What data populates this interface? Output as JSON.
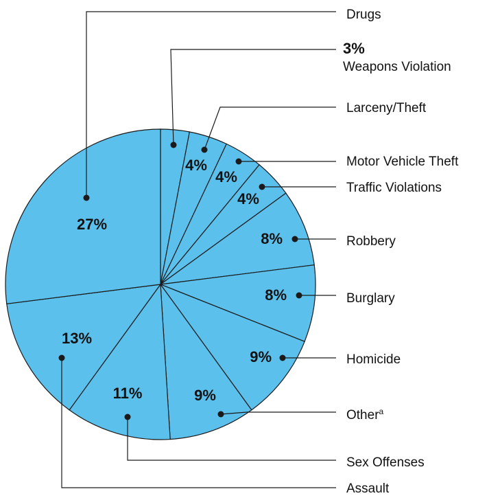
{
  "chart_data": {
    "type": "pie",
    "slices": [
      {
        "label": "Weapons Violation",
        "value": 3,
        "pct_text": "3%"
      },
      {
        "label": "Larceny/Theft",
        "value": 4,
        "pct_text": "4%"
      },
      {
        "label": "Motor Vehicle Theft",
        "value": 4,
        "pct_text": "4%"
      },
      {
        "label": "Traffic Violations",
        "value": 4,
        "pct_text": "4%"
      },
      {
        "label": "Robbery",
        "value": 8,
        "pct_text": "8%"
      },
      {
        "label": "Burglary",
        "value": 8,
        "pct_text": "8%"
      },
      {
        "label": "Homicide",
        "value": 9,
        "pct_text": "9%"
      },
      {
        "label": "Other",
        "label_sup": "a",
        "value": 9,
        "pct_text": "9%"
      },
      {
        "label": "Sex Offenses",
        "value": 11,
        "pct_text": "11%"
      },
      {
        "label": "Assault",
        "value": 13,
        "pct_text": "13%"
      },
      {
        "label": "Drugs",
        "value": 27,
        "pct_text": "27%"
      }
    ],
    "colors": {
      "slice": "#5bc0ec",
      "line": "#1a1a1a",
      "text": "#111111"
    }
  }
}
